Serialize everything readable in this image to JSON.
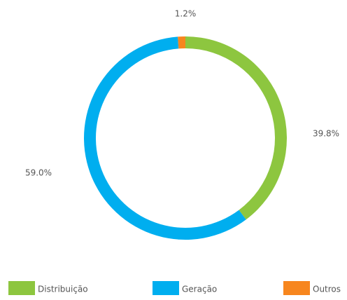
{
  "chart_data": {
    "type": "pie",
    "categories": [
      "Distribuição",
      "Geração",
      "Outros"
    ],
    "values": [
      39.8,
      59.0,
      1.2
    ],
    "value_labels": [
      "39.8%",
      "59.0%",
      "1.2%"
    ],
    "colors": [
      "#8dc63f",
      "#00aeef",
      "#f7861e"
    ],
    "legend": "bottom"
  }
}
